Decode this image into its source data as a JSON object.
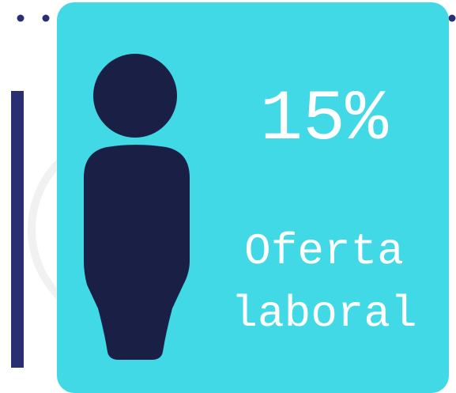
{
  "card": {
    "value": "15%",
    "label_lines": [
      "Oferta",
      "laboral"
    ]
  }
}
